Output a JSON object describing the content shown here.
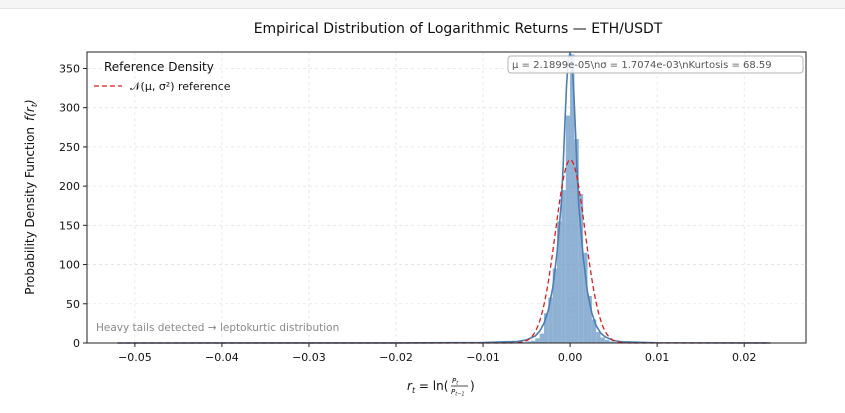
{
  "chart_data": {
    "type": "bar",
    "title": "Empirical Distribution of Logarithmic Returns — ETH/USDT",
    "ylabel": "Probability Density Function",
    "ylabel_math": "f(r",
    "ylabel_math_sub": "t",
    "ylabel_math_close": ")",
    "xlabel_parts": {
      "r": "r",
      "sub_t": "t",
      "eq": " = ln(",
      "num": "P",
      "num_sub": "t",
      "den": "P",
      "den_sub": "t−1",
      "close": ")"
    },
    "xlim": [
      -0.0555,
      0.0271
    ],
    "ylim": [
      0,
      371
    ],
    "x_ticks": [
      -0.05,
      -0.04,
      -0.03,
      -0.02,
      -0.01,
      0.0,
      0.01,
      0.02
    ],
    "x_tick_labels": [
      "−0.05",
      "−0.04",
      "−0.03",
      "−0.02",
      "−0.01",
      "0.00",
      "0.01",
      "0.02"
    ],
    "y_ticks": [
      0,
      50,
      100,
      150,
      200,
      250,
      300,
      350
    ],
    "y_tick_labels": [
      "0",
      "50",
      "100",
      "150",
      "200",
      "250",
      "300",
      "350"
    ],
    "grid": true,
    "histogram": {
      "bin_width": 0.0005,
      "bin_starts": [
        -0.0055,
        -0.005,
        -0.0045,
        -0.004,
        -0.0035,
        -0.003,
        -0.0025,
        -0.002,
        -0.0015,
        -0.001,
        -0.0005,
        0.0,
        0.0005,
        0.001,
        0.0015,
        0.002,
        0.0025,
        0.003,
        0.0035,
        0.004,
        0.0045,
        0.005
      ],
      "values": [
        1,
        2,
        3,
        6,
        12,
        38,
        58,
        95,
        155,
        195,
        290,
        368,
        260,
        190,
        115,
        60,
        30,
        14,
        7,
        4,
        2,
        1
      ],
      "color": "#6f9bc6"
    },
    "kde": {
      "color": "#4a7fb5",
      "x": [
        -0.052,
        -0.02,
        -0.01,
        -0.006,
        -0.005,
        -0.004,
        -0.0035,
        -0.003,
        -0.0025,
        -0.002,
        -0.0015,
        -0.001,
        -0.0008,
        -0.0006,
        -0.0004,
        -0.0002,
        0.0,
        0.0002,
        0.0004,
        0.0006,
        0.0008,
        0.001,
        0.0015,
        0.002,
        0.0025,
        0.003,
        0.0035,
        0.004,
        0.005,
        0.006,
        0.01,
        0.023
      ],
      "y": [
        0,
        0.1,
        0.6,
        2,
        4,
        9,
        15,
        25,
        42,
        70,
        115,
        180,
        225,
        280,
        330,
        362,
        370,
        360,
        325,
        275,
        220,
        175,
        110,
        65,
        38,
        22,
        13,
        8,
        3,
        1.5,
        0.3,
        0
      ]
    },
    "normal_reference": {
      "mu": 2.1899e-05,
      "sigma": 0.0017074,
      "x_range": [
        -0.052,
        0.023
      ],
      "color": "#dd1c1c"
    },
    "legend": {
      "placement": "upper-left",
      "title": "Reference Density",
      "entry_label": "𝒩(μ, σ²) reference"
    },
    "stats_box": {
      "placement": "top-right",
      "text": "μ = 2.1899e-05\\nσ = 1.7074e-03\\nKurtosis = 68.59"
    },
    "annotation": "Heavy tails detected → leptokurtic distribution"
  }
}
